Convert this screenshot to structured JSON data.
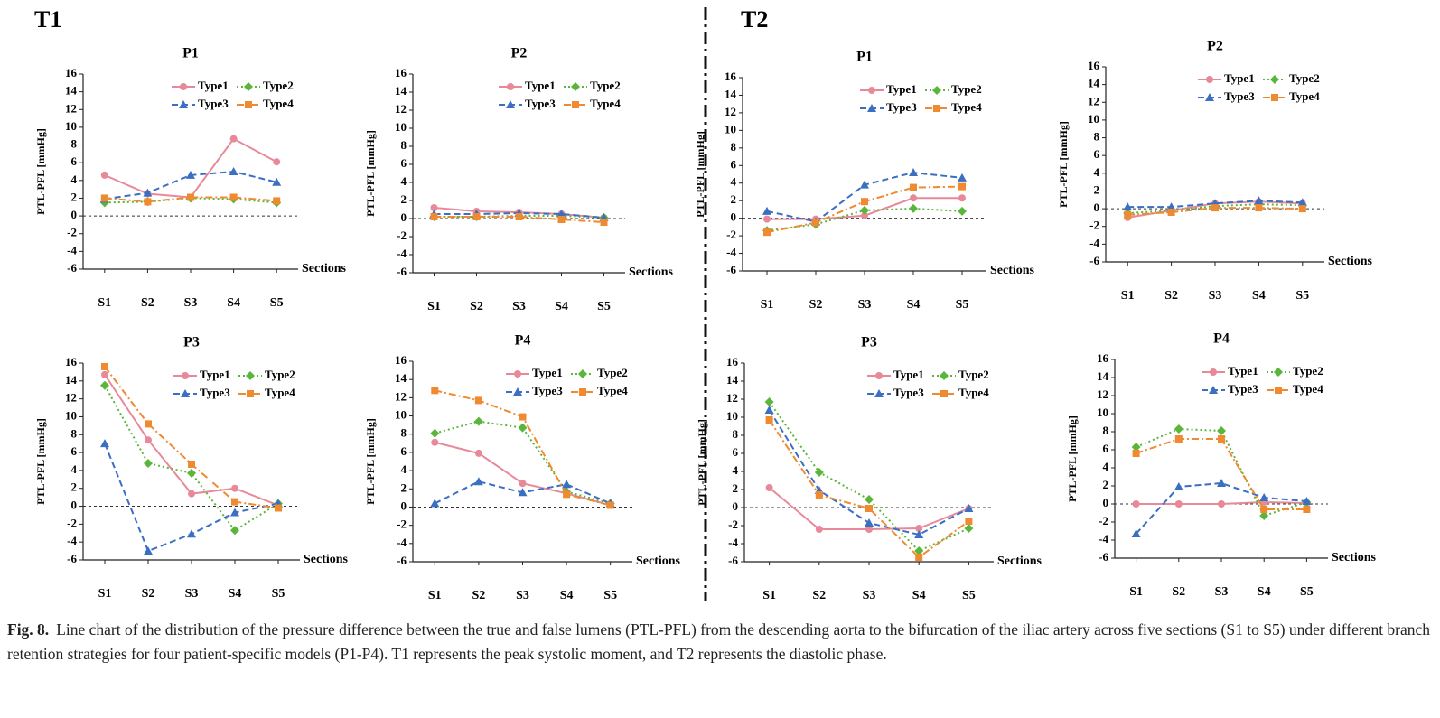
{
  "figure": {
    "groups": [
      "T1",
      "T2"
    ],
    "caption": {
      "label": "Fig. 8.",
      "text": "Line chart of the distribution of the pressure difference between the true and false lumens (PTL-PFL) from the descending aorta to the bifurcation of the iliac artery across five sections (S1 to S5) under different branch retention strategies for four patient-specific models (P1-P4). T1 represents the peak systolic moment, and T2 represents the diastolic phase."
    }
  },
  "chart_data": [
    {
      "type": "line",
      "title": "P1",
      "y_label": "PTL-PFL [mmHg]",
      "x_label": "Sections",
      "categories": [
        "S1",
        "S2",
        "S3",
        "S4",
        "S5"
      ],
      "ylim": [
        -6,
        16
      ],
      "yticks": [
        -6,
        -4,
        -2,
        0,
        2,
        4,
        6,
        8,
        10,
        12,
        14,
        16
      ],
      "zero_line": true,
      "legend": "upper right",
      "series": [
        {
          "name": "Type1",
          "color": "#e8899a",
          "line_style": "solid",
          "marker": "circle",
          "values": [
            4.6,
            2.5,
            2.1,
            8.7,
            6.1
          ]
        },
        {
          "name": "Type2",
          "color": "#5ab63a",
          "line_style": "dotted",
          "marker": "diamond",
          "values": [
            1.5,
            1.6,
            2.0,
            1.9,
            1.5
          ]
        },
        {
          "name": "Type3",
          "color": "#3b6fc4",
          "line_style": "dashed",
          "marker": "triangle",
          "values": [
            1.9,
            2.6,
            4.6,
            5.0,
            3.8
          ]
        },
        {
          "name": "Type4",
          "color": "#f08a30",
          "line_style": "dashdot",
          "marker": "square",
          "values": [
            2.0,
            1.6,
            2.1,
            2.1,
            1.7
          ]
        }
      ]
    },
    {
      "type": "line",
      "title": "P2",
      "y_label": "PTL-PFL [mmHg]",
      "x_label": "Sections",
      "categories": [
        "S1",
        "S2",
        "S3",
        "S4",
        "S5"
      ],
      "ylim": [
        -6,
        16
      ],
      "yticks": [
        -6,
        -4,
        -2,
        0,
        2,
        4,
        6,
        8,
        10,
        12,
        14,
        16
      ],
      "zero_line": true,
      "legend": "upper right",
      "series": [
        {
          "name": "Type1",
          "color": "#e8899a",
          "line_style": "solid",
          "marker": "circle",
          "values": [
            1.2,
            0.8,
            0.7,
            0.5,
            0.1
          ]
        },
        {
          "name": "Type2",
          "color": "#5ab63a",
          "line_style": "dotted",
          "marker": "diamond",
          "values": [
            0.2,
            0.2,
            0.3,
            0.3,
            0.1
          ]
        },
        {
          "name": "Type3",
          "color": "#3b6fc4",
          "line_style": "dashed",
          "marker": "triangle",
          "values": [
            0.5,
            0.5,
            0.6,
            0.5,
            0.1
          ]
        },
        {
          "name": "Type4",
          "color": "#f08a30",
          "line_style": "dashdot",
          "marker": "square",
          "values": [
            0.2,
            0.2,
            0.2,
            -0.1,
            -0.4
          ]
        }
      ]
    },
    {
      "type": "line",
      "title": "P3",
      "y_label": "PTL-PFL [mmHg]",
      "x_label": "Sections",
      "categories": [
        "S1",
        "S2",
        "S3",
        "S4",
        "S5"
      ],
      "ylim": [
        -6,
        16
      ],
      "yticks": [
        -6,
        -4,
        -2,
        0,
        2,
        4,
        6,
        8,
        10,
        12,
        14,
        16
      ],
      "zero_line": true,
      "legend": "upper right",
      "series": [
        {
          "name": "Type1",
          "color": "#e8899a",
          "line_style": "solid",
          "marker": "circle",
          "values": [
            14.7,
            7.4,
            1.4,
            2.0,
            0.1
          ]
        },
        {
          "name": "Type2",
          "color": "#5ab63a",
          "line_style": "dotted",
          "marker": "diamond",
          "values": [
            13.5,
            4.8,
            3.7,
            -2.7,
            0.3
          ]
        },
        {
          "name": "Type3",
          "color": "#3b6fc4",
          "line_style": "dashed",
          "marker": "triangle",
          "values": [
            7.0,
            -5.0,
            -3.1,
            -0.7,
            0.3
          ]
        },
        {
          "name": "Type4",
          "color": "#f08a30",
          "line_style": "dashdot",
          "marker": "square",
          "values": [
            15.6,
            9.2,
            4.7,
            0.5,
            -0.2
          ]
        }
      ]
    },
    {
      "type": "line",
      "title": "P4",
      "y_label": "PTL-PFL [mmHg]",
      "x_label": "Sections",
      "categories": [
        "S1",
        "S2",
        "S3",
        "S4",
        "S5"
      ],
      "ylim": [
        -6,
        16
      ],
      "yticks": [
        -6,
        -4,
        -2,
        0,
        2,
        4,
        6,
        8,
        10,
        12,
        14,
        16
      ],
      "zero_line": true,
      "legend": "upper right",
      "series": [
        {
          "name": "Type1",
          "color": "#e8899a",
          "line_style": "solid",
          "marker": "circle",
          "values": [
            7.1,
            5.9,
            2.6,
            1.5,
            0.2
          ]
        },
        {
          "name": "Type2",
          "color": "#5ab63a",
          "line_style": "dotted",
          "marker": "diamond",
          "values": [
            8.1,
            9.4,
            8.7,
            1.7,
            0.4
          ]
        },
        {
          "name": "Type3",
          "color": "#3b6fc4",
          "line_style": "dashed",
          "marker": "triangle",
          "values": [
            0.4,
            2.8,
            1.6,
            2.5,
            0.4
          ]
        },
        {
          "name": "Type4",
          "color": "#f08a30",
          "line_style": "dashdot",
          "marker": "square",
          "values": [
            12.8,
            11.7,
            9.9,
            1.4,
            0.2
          ]
        }
      ]
    },
    {
      "type": "line",
      "title": "P1",
      "y_label": "PTL-PFL [mmHg]",
      "x_label": "Sections",
      "categories": [
        "S1",
        "S2",
        "S3",
        "S4",
        "S5"
      ],
      "ylim": [
        -6,
        16
      ],
      "yticks": [
        -6,
        -4,
        -2,
        0,
        2,
        4,
        6,
        8,
        10,
        12,
        14,
        16
      ],
      "zero_line": true,
      "legend": "upper right",
      "series": [
        {
          "name": "Type1",
          "color": "#e8899a",
          "line_style": "solid",
          "marker": "circle",
          "values": [
            -0.1,
            -0.1,
            0.3,
            2.3,
            2.3
          ]
        },
        {
          "name": "Type2",
          "color": "#5ab63a",
          "line_style": "dotted",
          "marker": "diamond",
          "values": [
            -1.4,
            -0.7,
            0.9,
            1.1,
            0.8
          ]
        },
        {
          "name": "Type3",
          "color": "#3b6fc4",
          "line_style": "dashed",
          "marker": "triangle",
          "values": [
            0.8,
            -0.4,
            3.8,
            5.2,
            4.6
          ]
        },
        {
          "name": "Type4",
          "color": "#f08a30",
          "line_style": "dashdot",
          "marker": "square",
          "values": [
            -1.6,
            -0.5,
            1.9,
            3.5,
            3.6
          ]
        }
      ]
    },
    {
      "type": "line",
      "title": "P2",
      "y_label": "PTL-PFL [mmHg]",
      "x_label": "Sections",
      "categories": [
        "S1",
        "S2",
        "S3",
        "S4",
        "S5"
      ],
      "ylim": [
        -6,
        16
      ],
      "yticks": [
        -6,
        -4,
        -2,
        0,
        2,
        4,
        6,
        8,
        10,
        12,
        14,
        16
      ],
      "zero_line": true,
      "legend": "upper right",
      "series": [
        {
          "name": "Type1",
          "color": "#e8899a",
          "line_style": "solid",
          "marker": "circle",
          "values": [
            -1.0,
            -0.2,
            0.6,
            0.8,
            0.6
          ]
        },
        {
          "name": "Type2",
          "color": "#5ab63a",
          "line_style": "dotted",
          "marker": "diamond",
          "values": [
            -0.5,
            -0.2,
            0.3,
            0.5,
            0.4
          ]
        },
        {
          "name": "Type3",
          "color": "#3b6fc4",
          "line_style": "dashed",
          "marker": "triangle",
          "values": [
            0.2,
            0.2,
            0.6,
            0.9,
            0.7
          ]
        },
        {
          "name": "Type4",
          "color": "#f08a30",
          "line_style": "dashdot",
          "marker": "square",
          "values": [
            -0.7,
            -0.4,
            0.1,
            0.1,
            0.0
          ]
        }
      ]
    },
    {
      "type": "line",
      "title": "P3",
      "y_label": "PTL-PFL [mmHg]",
      "x_label": "Sections",
      "categories": [
        "S1",
        "S2",
        "S3",
        "S4",
        "S5"
      ],
      "ylim": [
        -6,
        16
      ],
      "yticks": [
        -6,
        -4,
        -2,
        0,
        2,
        4,
        6,
        8,
        10,
        12,
        14,
        16
      ],
      "zero_line": true,
      "legend": "upper right",
      "series": [
        {
          "name": "Type1",
          "color": "#e8899a",
          "line_style": "solid",
          "marker": "circle",
          "values": [
            2.2,
            -2.4,
            -2.4,
            -2.3,
            -0.1
          ]
        },
        {
          "name": "Type2",
          "color": "#5ab63a",
          "line_style": "dotted",
          "marker": "diamond",
          "values": [
            11.7,
            3.9,
            0.9,
            -4.8,
            -2.3
          ]
        },
        {
          "name": "Type3",
          "color": "#3b6fc4",
          "line_style": "dashed",
          "marker": "triangle",
          "values": [
            10.8,
            1.9,
            -1.7,
            -3.0,
            -0.1
          ]
        },
        {
          "name": "Type4",
          "color": "#f08a30",
          "line_style": "dashdot",
          "marker": "square",
          "values": [
            9.7,
            1.4,
            -0.1,
            -5.5,
            -1.5
          ]
        }
      ]
    },
    {
      "type": "line",
      "title": "P4",
      "y_label": "PTL-PFL [mmHg]",
      "x_label": "Sections",
      "categories": [
        "S1",
        "S2",
        "S3",
        "S4",
        "S5"
      ],
      "ylim": [
        -6,
        16
      ],
      "yticks": [
        -6,
        -4,
        -2,
        0,
        2,
        4,
        6,
        8,
        10,
        12,
        14,
        16
      ],
      "zero_line": true,
      "legend": "upper right",
      "series": [
        {
          "name": "Type1",
          "color": "#e8899a",
          "line_style": "solid",
          "marker": "circle",
          "values": [
            0.0,
            0.0,
            0.0,
            0.2,
            0.1
          ]
        },
        {
          "name": "Type2",
          "color": "#5ab63a",
          "line_style": "dotted",
          "marker": "diamond",
          "values": [
            6.3,
            8.3,
            8.1,
            -1.3,
            0.2
          ]
        },
        {
          "name": "Type3",
          "color": "#3b6fc4",
          "line_style": "dashed",
          "marker": "triangle",
          "values": [
            -3.3,
            1.9,
            2.3,
            0.7,
            0.3
          ]
        },
        {
          "name": "Type4",
          "color": "#f08a30",
          "line_style": "dashdot",
          "marker": "square",
          "values": [
            5.6,
            7.2,
            7.2,
            -0.6,
            -0.6
          ]
        }
      ]
    }
  ]
}
